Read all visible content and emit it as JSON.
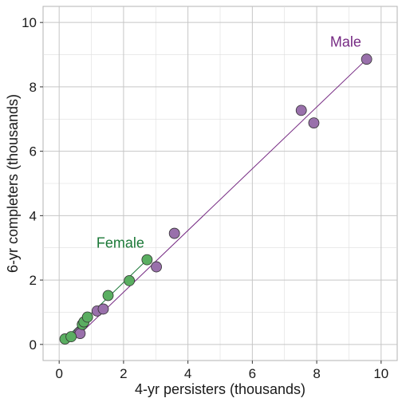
{
  "chart_data": {
    "type": "scatter",
    "title": "",
    "xlabel": "4-yr persisters (thousands)",
    "ylabel": "6-yr completers (thousands)",
    "xlim": [
      -0.5,
      10.5
    ],
    "ylim": [
      -0.5,
      10.5
    ],
    "xticks": [
      0,
      2,
      4,
      6,
      8,
      10
    ],
    "yticks": [
      0,
      2,
      4,
      6,
      8,
      10
    ],
    "grid": true,
    "legend": "none",
    "series": [
      {
        "name": "Female",
        "color": "#1b7837",
        "fill": "#5aae61",
        "points": [
          {
            "x": 0.18,
            "y": 0.17
          },
          {
            "x": 0.37,
            "y": 0.24
          },
          {
            "x": 0.72,
            "y": 0.62
          },
          {
            "x": 0.77,
            "y": 0.7
          },
          {
            "x": 0.88,
            "y": 0.85
          },
          {
            "x": 1.52,
            "y": 1.52
          },
          {
            "x": 2.18,
            "y": 1.98
          },
          {
            "x": 2.73,
            "y": 2.63
          }
        ],
        "fit": {
          "x": [
            0.18,
            2.73
          ],
          "y": [
            0.17,
            2.63
          ]
        },
        "label_position": {
          "x": 1.9,
          "y": 3.15
        }
      },
      {
        "name": "Male",
        "color": "#762a83",
        "fill": "#9970ab",
        "points": [
          {
            "x": 0.62,
            "y": 0.37
          },
          {
            "x": 0.65,
            "y": 0.34
          },
          {
            "x": 1.18,
            "y": 1.04
          },
          {
            "x": 1.37,
            "y": 1.1
          },
          {
            "x": 3.02,
            "y": 2.41
          },
          {
            "x": 3.58,
            "y": 3.45
          },
          {
            "x": 7.52,
            "y": 7.27
          },
          {
            "x": 7.91,
            "y": 6.88
          },
          {
            "x": 9.55,
            "y": 8.86
          }
        ],
        "fit": {
          "x": [
            0.62,
            9.55
          ],
          "y": [
            0.3,
            8.86
          ]
        },
        "label_position": {
          "x": 8.9,
          "y": 9.4
        }
      }
    ]
  }
}
